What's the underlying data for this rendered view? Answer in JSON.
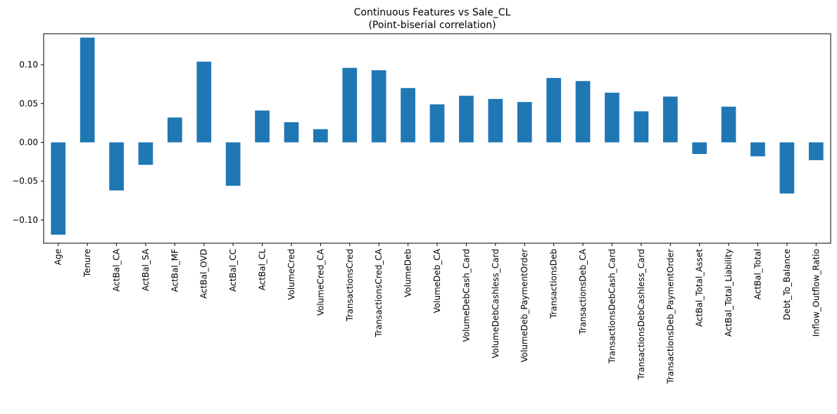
{
  "chart_data": {
    "type": "bar",
    "title": "Continuous Features vs Sale_CL",
    "subtitle": "(Point-biserial correlation)",
    "xlabel": "",
    "ylabel": "",
    "ylim": [
      -0.13,
      0.14
    ],
    "yticks": [
      -0.1,
      -0.05,
      0.0,
      0.05,
      0.1
    ],
    "ytick_labels": [
      "−0.10",
      "−0.05",
      "0.00",
      "0.05",
      "0.10"
    ],
    "grid": false,
    "legend": "none",
    "color": "#1f77b4",
    "categories": [
      "Age",
      "Tenure",
      "ActBal_CA",
      "ActBal_SA",
      "ActBal_MF",
      "ActBal_OVD",
      "ActBal_CC",
      "ActBal_CL",
      "VolumeCred",
      "VolumeCred_CA",
      "TransactionsCred",
      "TransactionsCred_CA",
      "VolumeDeb",
      "VolumeDeb_CA",
      "VolumeDebCash_Card",
      "VolumeDebCashless_Card",
      "VolumeDeb_PaymentOrder",
      "TransactionsDeb",
      "TransactionsDeb_CA",
      "TransactionsDebCash_Card",
      "TransactionsDebCashless_Card",
      "TransactionsDeb_PaymentOrder",
      "ActBal_Total_Asset",
      "ActBal_Total_Liability",
      "ActBal_Total",
      "Debt_To_Balance",
      "Inflow_Outflow_Ratio"
    ],
    "values": [
      -0.119,
      0.135,
      -0.062,
      -0.029,
      0.032,
      0.104,
      -0.056,
      0.041,
      0.026,
      0.017,
      0.096,
      0.093,
      0.07,
      0.049,
      0.06,
      0.056,
      0.052,
      0.083,
      0.079,
      0.064,
      0.04,
      0.059,
      -0.015,
      0.046,
      -0.018,
      -0.066,
      -0.023
    ]
  }
}
